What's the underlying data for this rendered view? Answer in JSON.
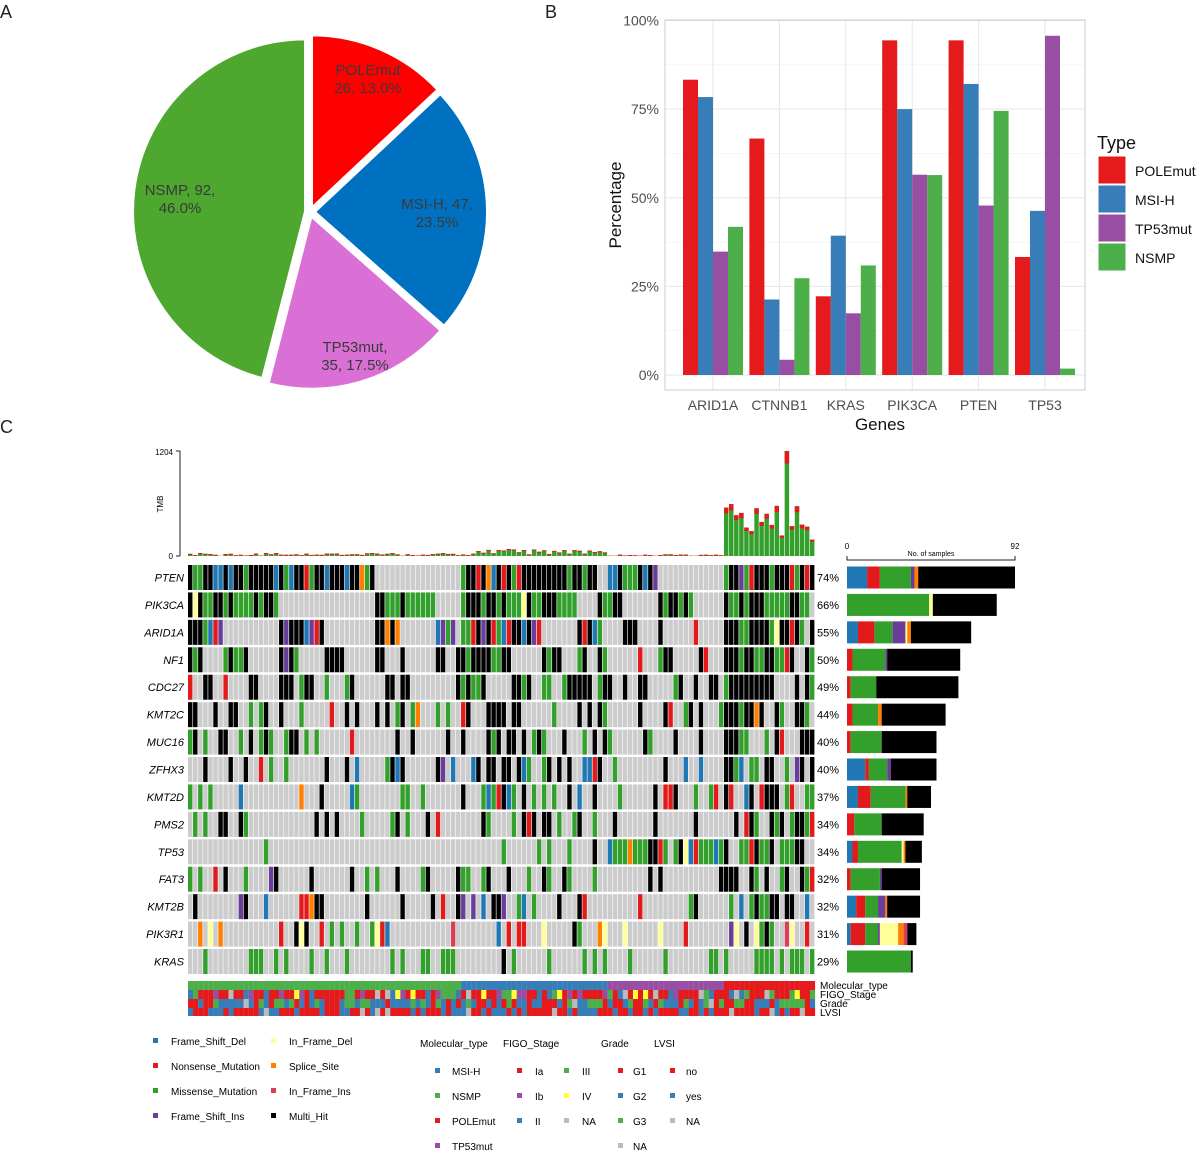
{
  "panels": {
    "a": "A",
    "b": "B",
    "c": "C"
  },
  "chart_data": [
    {
      "type": "pie",
      "slices": [
        {
          "label_line1": "POLEmut",
          "label_line2": "26, 13.0%",
          "name": "POLEmut",
          "value": 26,
          "percent": 13.0,
          "color": "#ff0000"
        },
        {
          "label_line1": "MSI-H, 47,",
          "label_line2": "23.5%",
          "name": "MSI-H",
          "value": 47,
          "percent": 23.5,
          "color": "#0070c0"
        },
        {
          "label_line1": "TP53mut,",
          "label_line2": "35, 17.5%",
          "name": "TP53mut",
          "value": 35,
          "percent": 17.5,
          "color": "#da70d6"
        },
        {
          "label_line1": "NSMP, 92,",
          "label_line2": "46.0%",
          "name": "NSMP",
          "value": 92,
          "percent": 46.0,
          "color": "#4ea72e"
        }
      ]
    },
    {
      "type": "bar",
      "xlabel": "Genes",
      "ylabel": "Percentage",
      "ylim": [
        0,
        100
      ],
      "yticks": [
        "0%",
        "25%",
        "50%",
        "75%",
        "100%"
      ],
      "grid": true,
      "legend_title": "Type",
      "legend_position": "right",
      "categories": [
        "ARID1A",
        "CTNNB1",
        "KRAS",
        "PIK3CA",
        "PTEN",
        "TP53"
      ],
      "series": [
        {
          "name": "POLEmut",
          "color": "#e41a1c",
          "values": [
            83.3,
            66.7,
            22.2,
            94.4,
            94.4,
            33.3
          ]
        },
        {
          "name": "MSI-H",
          "color": "#377eb8",
          "values": [
            78.4,
            21.3,
            39.3,
            75.0,
            82.1,
            46.3
          ]
        },
        {
          "name": "TP53mut",
          "color": "#984ea3",
          "values": [
            34.8,
            4.3,
            17.4,
            56.5,
            47.8,
            95.7
          ]
        },
        {
          "name": "NSMP",
          "color": "#4daf4a",
          "values": [
            41.8,
            27.3,
            30.9,
            56.4,
            74.5,
            1.8
          ]
        }
      ]
    }
  ],
  "oncoplot": {
    "tmb_label": "TMB",
    "tmb_max": "1204",
    "tmb_min": "0",
    "samples_axis": {
      "min": "0",
      "max": "92",
      "label": "No. of samples"
    },
    "mutation_types": [
      {
        "name": "Frame_Shift_Del",
        "color": "#1f78b4"
      },
      {
        "name": "Nonsense_Mutation",
        "color": "#e31a1c"
      },
      {
        "name": "Missense_Mutation",
        "color": "#33a02c"
      },
      {
        "name": "Frame_Shift_Ins",
        "color": "#6a3d9a"
      },
      {
        "name": "In_Frame_Del",
        "color": "#ffff99"
      },
      {
        "name": "Splice_Site",
        "color": "#ff7f00"
      },
      {
        "name": "In_Frame_Ins",
        "color": "#d6405a"
      },
      {
        "name": "Multi_Hit",
        "color": "#000000"
      }
    ],
    "genes": [
      {
        "name": "PTEN",
        "pct": "74%",
        "counts": [
          11,
          7,
          17,
          2,
          0,
          2,
          0,
          53
        ]
      },
      {
        "name": "PIK3CA",
        "pct": "66%",
        "counts": [
          0,
          0,
          45,
          0,
          2,
          0,
          0,
          35
        ]
      },
      {
        "name": "ARID1A",
        "pct": "55%",
        "counts": [
          6,
          9,
          10,
          7,
          1,
          2,
          0,
          33
        ]
      },
      {
        "name": "NF1",
        "pct": "50%",
        "counts": [
          0,
          3,
          18,
          1,
          0,
          0,
          0,
          40
        ]
      },
      {
        "name": "CDC27",
        "pct": "49%",
        "counts": [
          0,
          2,
          14,
          0,
          0,
          0,
          0,
          45
        ]
      },
      {
        "name": "KMT2C",
        "pct": "44%",
        "counts": [
          0,
          3,
          14,
          0,
          0,
          2,
          0,
          35
        ]
      },
      {
        "name": "MUC16",
        "pct": "40%",
        "counts": [
          0,
          2,
          17,
          0,
          0,
          0,
          0,
          30
        ]
      },
      {
        "name": "ZFHX3",
        "pct": "40%",
        "counts": [
          10,
          2,
          10,
          2,
          0,
          0,
          0,
          25
        ]
      },
      {
        "name": "KMT2D",
        "pct": "37%",
        "counts": [
          6,
          7,
          19,
          0,
          0,
          1,
          0,
          13
        ]
      },
      {
        "name": "PMS2",
        "pct": "34%",
        "counts": [
          0,
          4,
          15,
          0,
          0,
          0,
          0,
          23
        ]
      },
      {
        "name": "TP53",
        "pct": "34%",
        "counts": [
          3,
          3,
          24,
          0,
          1,
          1,
          0,
          9
        ]
      },
      {
        "name": "FAT3",
        "pct": "32%",
        "counts": [
          0,
          2,
          16,
          1,
          0,
          0,
          0,
          21
        ]
      },
      {
        "name": "KMT2B",
        "pct": "32%",
        "counts": [
          5,
          5,
          7,
          4,
          0,
          1,
          0,
          18
        ]
      },
      {
        "name": "PIK3R1",
        "pct": "31%",
        "counts": [
          2,
          8,
          7,
          1,
          10,
          3,
          2,
          5
        ]
      },
      {
        "name": "KRAS",
        "pct": "29%",
        "counts": [
          0,
          0,
          35,
          0,
          0,
          0,
          0,
          1
        ]
      }
    ],
    "annotation_tracks": [
      {
        "name": "Molecular_type",
        "levels": [
          {
            "name": "MSI-H",
            "color": "#377eb8"
          },
          {
            "name": "NSMP",
            "color": "#4daf4a"
          },
          {
            "name": "POLEmut",
            "color": "#e41a1c"
          },
          {
            "name": "TP53mut",
            "color": "#984ea3"
          }
        ]
      },
      {
        "name": "FIGO_Stage",
        "levels": [
          {
            "name": "Ia",
            "color": "#e41a1c"
          },
          {
            "name": "Ib",
            "color": "#984ea3"
          },
          {
            "name": "II",
            "color": "#377eb8"
          },
          {
            "name": "III",
            "color": "#4daf4a"
          },
          {
            "name": "IV",
            "color": "#ffff33"
          },
          {
            "name": "NA",
            "color": "#bbbbbb"
          }
        ]
      },
      {
        "name": "Grade",
        "levels": [
          {
            "name": "G1",
            "color": "#e41a1c"
          },
          {
            "name": "G2",
            "color": "#377eb8"
          },
          {
            "name": "G3",
            "color": "#4daf4a"
          },
          {
            "name": "NA",
            "color": "#bbbbbb"
          }
        ]
      },
      {
        "name": "LVSI",
        "levels": [
          {
            "name": "no",
            "color": "#e41a1c"
          },
          {
            "name": "yes",
            "color": "#377eb8"
          },
          {
            "name": "NA",
            "color": "#bbbbbb"
          }
        ]
      }
    ]
  }
}
